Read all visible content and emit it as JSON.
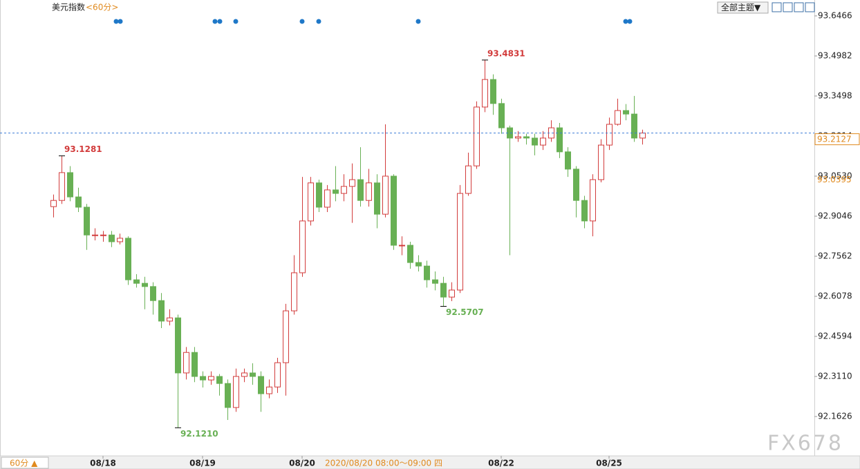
{
  "chart_data": {
    "type": "candlestick",
    "title": "美元指数",
    "period": "<60分>",
    "theme_button": "全部主题▼",
    "period_button": "60分 ▲",
    "cursor_label": "2020/08/20 08:00～09:00 四",
    "watermark": "FX678",
    "up_color": "#d23b3b",
    "down_color": "#68b054",
    "ylim": [
      92.0168,
      93.6466
    ],
    "yticks": [
      93.6466,
      93.4982,
      93.3498,
      93.2014,
      {
        "value": 93.053,
        "label": "93.0530"
      },
      92.9046,
      92.7562,
      92.6078,
      92.4594,
      {
        "value": 92.311,
        "label": "92.3110"
      },
      92.1626
    ],
    "last_price": 93.2127,
    "marker_price": 93.0395,
    "categories": [
      null,
      null,
      null,
      null,
      null,
      null,
      "08/18",
      null,
      null,
      null,
      null,
      null,
      null,
      null,
      null,
      null,
      null,
      null,
      "08/19",
      null,
      null,
      null,
      null,
      null,
      null,
      null,
      null,
      null,
      null,
      null,
      "08/20",
      null,
      null,
      null,
      null,
      null,
      null,
      null,
      null,
      null,
      null,
      null,
      null,
      null,
      null,
      null,
      null,
      null,
      null,
      null,
      null,
      null,
      null,
      null,
      "08/22",
      null,
      null,
      null,
      null,
      null,
      null,
      null,
      null,
      null,
      null,
      null,
      null,
      "08/25",
      null,
      null,
      null,
      null
    ],
    "values": [
      [
        92.94,
        92.985,
        92.9,
        92.963
      ],
      [
        92.963,
        93.1281,
        92.95,
        93.066
      ],
      [
        93.066,
        93.09,
        92.96,
        92.976
      ],
      [
        92.976,
        93.01,
        92.92,
        92.938
      ],
      [
        92.938,
        92.95,
        92.78,
        92.835
      ],
      [
        92.835,
        92.86,
        92.815,
        92.835
      ],
      [
        92.835,
        92.85,
        92.81,
        92.835
      ],
      [
        92.835,
        92.85,
        92.79,
        92.81
      ],
      [
        92.81,
        92.84,
        92.8,
        92.823
      ],
      [
        92.823,
        92.83,
        92.65,
        92.669
      ],
      [
        92.669,
        92.69,
        92.64,
        92.656
      ],
      [
        92.656,
        92.68,
        92.56,
        92.644
      ],
      [
        92.644,
        92.66,
        92.54,
        92.592
      ],
      [
        92.592,
        92.62,
        92.49,
        92.516
      ],
      [
        92.516,
        92.56,
        92.5,
        92.528
      ],
      [
        92.528,
        92.54,
        92.121,
        92.324
      ],
      [
        92.324,
        92.42,
        92.3,
        92.4
      ],
      [
        92.4,
        92.42,
        92.29,
        92.311
      ],
      [
        92.311,
        92.33,
        92.27,
        92.298
      ],
      [
        92.298,
        92.33,
        92.28,
        92.311
      ],
      [
        92.311,
        92.32,
        92.24,
        92.285
      ],
      [
        92.285,
        92.3,
        92.15,
        92.196
      ],
      [
        92.196,
        92.34,
        92.18,
        92.311
      ],
      [
        92.311,
        92.34,
        92.29,
        92.324
      ],
      [
        92.324,
        92.36,
        92.28,
        92.311
      ],
      [
        92.311,
        92.33,
        92.18,
        92.247
      ],
      [
        92.247,
        92.3,
        92.23,
        92.272
      ],
      [
        92.272,
        92.38,
        92.25,
        92.362
      ],
      [
        92.362,
        92.58,
        92.24,
        92.554
      ],
      [
        92.554,
        92.76,
        92.54,
        92.695
      ],
      [
        92.695,
        93.05,
        92.68,
        92.887
      ],
      [
        92.887,
        93.05,
        92.87,
        93.028
      ],
      [
        93.028,
        93.04,
        92.92,
        92.938
      ],
      [
        92.938,
        93.02,
        92.92,
        93.002
      ],
      [
        93.002,
        93.09,
        92.96,
        92.989
      ],
      [
        92.989,
        93.06,
        92.96,
        93.015
      ],
      [
        93.015,
        93.1,
        92.88,
        93.04
      ],
      [
        93.04,
        93.16,
        92.94,
        92.963
      ],
      [
        92.963,
        93.08,
        92.94,
        93.028
      ],
      [
        93.028,
        93.06,
        92.86,
        92.912
      ],
      [
        92.912,
        93.245,
        92.9,
        93.053
      ],
      [
        93.053,
        93.06,
        92.78,
        92.797
      ],
      [
        92.797,
        92.83,
        92.76,
        92.797
      ],
      [
        92.797,
        92.81,
        92.71,
        92.733
      ],
      [
        92.733,
        92.76,
        92.7,
        92.72
      ],
      [
        92.72,
        92.74,
        92.64,
        92.669
      ],
      [
        92.669,
        92.7,
        92.63,
        92.656
      ],
      [
        92.656,
        92.68,
        92.5707,
        92.605
      ],
      [
        92.605,
        92.66,
        92.59,
        92.631
      ],
      [
        92.631,
        93.02,
        92.62,
        92.989
      ],
      [
        92.989,
        93.14,
        92.98,
        93.091
      ],
      [
        93.091,
        93.33,
        93.08,
        93.309
      ],
      [
        93.309,
        93.4831,
        93.29,
        93.411
      ],
      [
        93.411,
        93.43,
        93.28,
        93.322
      ],
      [
        93.322,
        93.34,
        93.21,
        93.232
      ],
      [
        93.232,
        93.24,
        92.76,
        93.194
      ],
      [
        93.194,
        93.22,
        93.18,
        93.199
      ],
      [
        93.199,
        93.21,
        93.17,
        93.194
      ],
      [
        93.194,
        93.21,
        93.13,
        93.168
      ],
      [
        93.168,
        93.22,
        93.15,
        93.194
      ],
      [
        93.194,
        93.26,
        93.18,
        93.232
      ],
      [
        93.232,
        93.25,
        93.12,
        93.143
      ],
      [
        93.143,
        93.16,
        93.05,
        93.079
      ],
      [
        93.079,
        93.09,
        92.9,
        92.963
      ],
      [
        92.963,
        92.98,
        92.86,
        92.887
      ],
      [
        92.887,
        93.06,
        92.83,
        93.04
      ],
      [
        93.04,
        93.19,
        93.03,
        93.168
      ],
      [
        93.168,
        93.27,
        93.15,
        93.245
      ],
      [
        93.245,
        93.34,
        93.24,
        93.296
      ],
      [
        93.296,
        93.32,
        93.26,
        93.283
      ],
      [
        93.283,
        93.35,
        93.18,
        93.194
      ],
      [
        93.194,
        93.225,
        93.17,
        93.2127
      ]
    ],
    "value_labels": [
      null,
      "93.1281",
      null,
      null,
      null,
      null,
      null,
      null,
      null,
      null,
      null,
      null,
      null,
      null,
      null,
      "92.1210",
      null,
      null,
      null,
      null,
      null,
      null,
      null,
      null,
      null,
      null,
      null,
      null,
      null,
      null,
      null,
      null,
      null,
      null,
      null,
      null,
      null,
      null,
      null,
      null,
      null,
      null,
      null,
      null,
      null,
      null,
      null,
      "92.5707",
      null,
      null,
      null,
      null,
      "93.4831",
      null,
      null,
      null,
      null,
      null,
      null,
      null,
      null,
      null,
      null,
      null,
      null,
      null,
      null,
      null,
      null,
      null,
      null,
      null
    ]
  }
}
